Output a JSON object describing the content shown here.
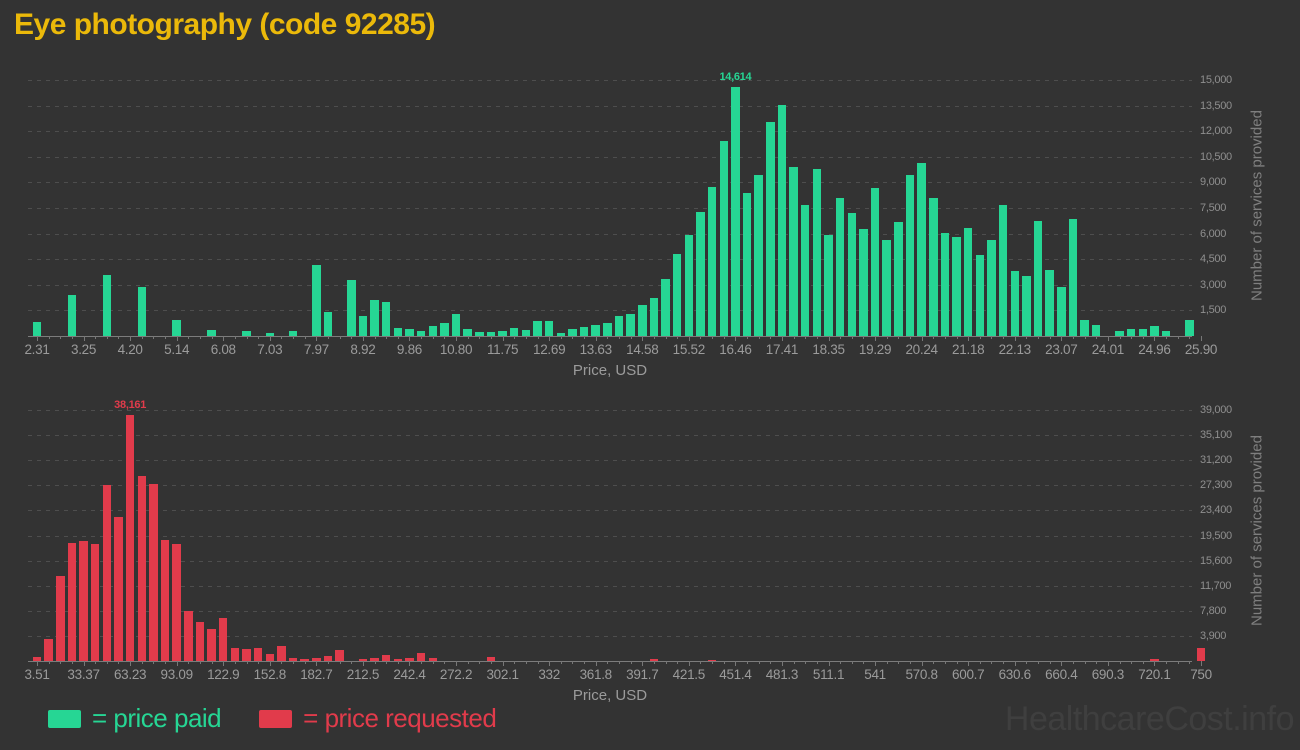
{
  "page": {
    "title": "Eye photography (code 92285)",
    "watermark": "HealthcareCost.info"
  },
  "legend": {
    "items": [
      {
        "label": "= price paid",
        "color": "#26d694"
      },
      {
        "label": "= price requested",
        "color": "#e13b4b"
      }
    ]
  },
  "chart_data": [
    {
      "type": "bar",
      "name": "price-paid-histogram",
      "series_label": "price paid",
      "color": "#26d694",
      "xlabel": "Price, USD",
      "ylabel": "Number of services provided",
      "x_tick_labels": [
        "2.31",
        "3.25",
        "4.20",
        "5.14",
        "6.08",
        "7.03",
        "7.97",
        "8.92",
        "9.86",
        "10.80",
        "11.75",
        "12.69",
        "13.63",
        "14.58",
        "15.52",
        "16.46",
        "17.41",
        "18.35",
        "19.29",
        "20.24",
        "21.18",
        "22.13",
        "23.07",
        "24.01",
        "24.96",
        "25.90"
      ],
      "y_tick_values": [
        1500,
        3000,
        4500,
        6000,
        7500,
        9000,
        10500,
        12000,
        13500,
        15000
      ],
      "y_tick_labels": [
        "1,500",
        "3,000",
        "4,500",
        "6,000",
        "7,500",
        "9,000",
        "10,500",
        "12,000",
        "13,500",
        "15,000"
      ],
      "ylim": [
        0,
        15290
      ],
      "grid": true,
      "legend_position": "bottom",
      "x_bin_start": 2.31,
      "x_bin_width": 0.236,
      "values": [
        810,
        0,
        0,
        2380,
        0,
        0,
        3560,
        0,
        0,
        2870,
        0,
        0,
        910,
        0,
        0,
        380,
        0,
        0,
        320,
        0,
        150,
        0,
        300,
        0,
        4150,
        1400,
        0,
        3260,
        1150,
        2090,
        1970,
        480,
        420,
        320,
        560,
        760,
        1265,
        420,
        225,
        225,
        265,
        460,
        380,
        855,
        855,
        185,
        420,
        520,
        660,
        760,
        1150,
        1300,
        1800,
        2250,
        3310,
        4830,
        5900,
        7265,
        8745,
        11410,
        14614,
        8395,
        9425,
        12520,
        13540,
        9913,
        7696,
        9776,
        5941,
        8087,
        7207,
        6254,
        8687,
        5608,
        6680,
        9424,
        10110,
        8095,
        6040,
        5804,
        6332,
        4729,
        5608,
        7656,
        3790,
        3516,
        6718,
        3850,
        2863,
        6874,
        913,
        620,
        0,
        320,
        420,
        420,
        615,
        320,
        0,
        910
      ],
      "peak": {
        "label": "14,614",
        "value": 14614,
        "index": 60
      }
    },
    {
      "type": "bar",
      "name": "price-requested-histogram",
      "series_label": "price requested",
      "color": "#e13b4b",
      "xlabel": "Price, USD",
      "ylabel": "Number of services provided",
      "x_tick_labels": [
        "3.51",
        "33.37",
        "63.23",
        "93.09",
        "122.9",
        "152.8",
        "182.7",
        "212.5",
        "242.4",
        "272.2",
        "302.1",
        "332",
        "361.8",
        "391.7",
        "421.5",
        "451.4",
        "481.3",
        "511.1",
        "541",
        "570.8",
        "600.7",
        "630.6",
        "660.4",
        "690.3",
        "720.1",
        "750"
      ],
      "y_tick_values": [
        3900,
        7800,
        11700,
        15600,
        19500,
        23400,
        27300,
        31200,
        35100,
        39000
      ],
      "y_tick_labels": [
        "3,900",
        "7,800",
        "11,700",
        "15,600",
        "19,500",
        "23,400",
        "27,300",
        "31,200",
        "35,100",
        "39,000"
      ],
      "ylim": [
        0,
        40560
      ],
      "grid": true,
      "legend_position": "bottom",
      "x_bin_start": 3.51,
      "x_bin_width": 7.465,
      "values": [
        650,
        3350,
        13200,
        18300,
        18600,
        18150,
        27300,
        22400,
        38161,
        28800,
        27450,
        18750,
        18150,
        7800,
        6050,
        4950,
        6650,
        1950,
        1800,
        1950,
        1050,
        2400,
        400,
        300,
        430,
        850,
        1750,
        0,
        330,
        400,
        880,
        370,
        430,
        1200,
        530,
        0,
        0,
        0,
        0,
        600,
        0,
        0,
        0,
        0,
        0,
        0,
        0,
        0,
        0,
        0,
        0,
        0,
        0,
        330,
        0,
        0,
        0,
        0,
        200,
        0,
        0,
        0,
        0,
        0,
        0,
        0,
        0,
        0,
        0,
        0,
        0,
        0,
        0,
        0,
        0,
        0,
        0,
        0,
        0,
        0,
        0,
        0,
        0,
        0,
        0,
        0,
        0,
        0,
        0,
        0,
        0,
        0,
        0,
        0,
        0,
        0,
        300,
        0,
        0,
        0,
        2000
      ],
      "peak": {
        "label": "38,161",
        "value": 38161,
        "index": 8
      }
    }
  ]
}
